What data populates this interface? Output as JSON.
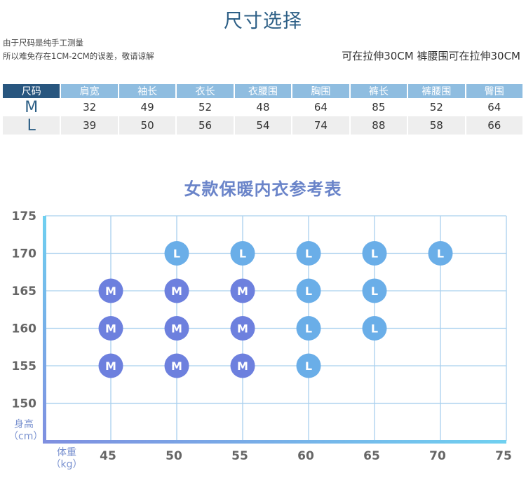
{
  "header": {
    "title": "尺寸选择",
    "note_line1": "由于尺码是纯手工测量",
    "note_line2": "所以难免存在1CM-2CM的误差，敬请谅解",
    "stretch_note": "可在拉伸30CM 裤腰围可在拉伸30CM"
  },
  "size_table": {
    "headers": [
      "尺码",
      "肩宽",
      "袖长",
      "衣长",
      "衣腰围",
      "胸围",
      "裤长",
      "裤腰围",
      "臀围"
    ],
    "rows": [
      {
        "size": "M",
        "values": [
          "32",
          "49",
          "52",
          "48",
          "64",
          "85",
          "52",
          "64"
        ]
      },
      {
        "size": "L",
        "values": [
          "39",
          "50",
          "56",
          "54",
          "74",
          "88",
          "58",
          "66"
        ]
      }
    ]
  },
  "chart_data": {
    "type": "scatter",
    "title": "女款保暖内衣参考表",
    "xlabel": "体重\n（kg）",
    "ylabel": "身高\n（cm）",
    "xlim": [
      40,
      75
    ],
    "ylim": [
      145,
      175
    ],
    "x_ticks": [
      45,
      50,
      55,
      60,
      65,
      70,
      75
    ],
    "y_ticks": [
      150,
      155,
      160,
      165,
      170,
      175
    ],
    "grid": true,
    "series": [
      {
        "name": "M",
        "color": "#6d80de",
        "points": [
          [
            45,
            165
          ],
          [
            50,
            165
          ],
          [
            55,
            165
          ],
          [
            45,
            160
          ],
          [
            50,
            160
          ],
          [
            55,
            160
          ],
          [
            45,
            155
          ],
          [
            50,
            155
          ],
          [
            55,
            155
          ]
        ]
      },
      {
        "name": "L",
        "color": "#6aaee8",
        "points": [
          [
            50,
            170
          ],
          [
            55,
            170
          ],
          [
            60,
            170
          ],
          [
            65,
            170
          ],
          [
            70,
            170
          ],
          [
            60,
            165
          ],
          [
            65,
            165
          ],
          [
            60,
            160
          ],
          [
            65,
            160
          ],
          [
            60,
            155
          ]
        ]
      }
    ],
    "colors": {
      "grid": "#a9d0ee",
      "axis_start": "#7f8fe0",
      "axis_end": "#6fd0f0",
      "tick_label": "#666666"
    }
  }
}
